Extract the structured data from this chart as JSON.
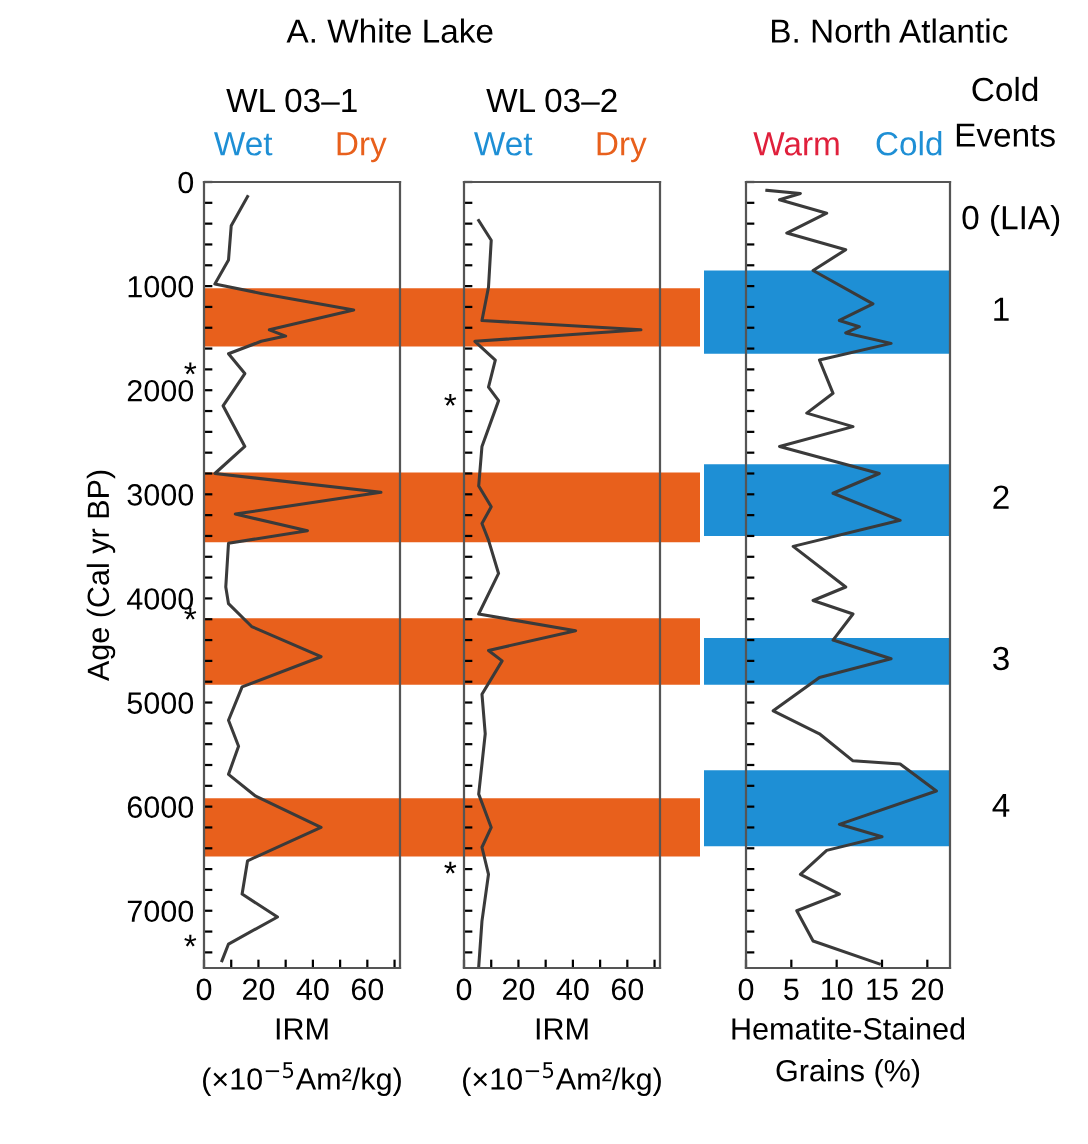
{
  "chart_data": [
    {
      "type": "line",
      "title": "A. White Lake",
      "subtitle": "WL 03–1",
      "xlabel": "IRM\n(×10$^{−5}$Am²/kg)",
      "ylabel": "Age (Cal yr BP)",
      "series": [
        {
          "color": "#3a3a3a",
          "x": [
            16,
            10,
            9,
            4,
            21,
            55,
            24,
            30,
            21,
            9,
            15,
            7,
            15,
            4,
            65,
            11.5,
            38,
            9,
            8,
            9,
            17.5,
            43,
            14,
            9,
            12.7,
            9,
            19,
            43,
            16,
            14,
            27,
            9,
            6.6
          ],
          "values": [
            140,
            420,
            750,
            980,
            1070,
            1230,
            1420,
            1480,
            1530,
            1650,
            1840,
            2150,
            2540,
            2800,
            2980,
            3190,
            3350,
            3470,
            3890,
            4050,
            4270,
            4560,
            4850,
            5170,
            5420,
            5690,
            5900,
            6200,
            6520,
            6840,
            7060,
            7320,
            7480
          ]
        }
      ],
      "xlim": [
        0,
        72
      ],
      "xticks": [
        0,
        {
          "value": 10,
          "label": null
        },
        20,
        {
          "value": 30,
          "label": null
        },
        40,
        {
          "value": 50,
          "label": null
        },
        60,
        {
          "value": 70,
          "label": null
        }
      ],
      "ylim": [
        7550,
        0
      ],
      "yticks": [
        0,
        {
          "value": 200,
          "label": null
        },
        {
          "value": 400,
          "label": null
        },
        {
          "value": 600,
          "label": null
        },
        {
          "value": 800,
          "label": null
        },
        1000,
        {
          "value": 1200,
          "label": null
        },
        {
          "value": 1400,
          "label": null
        },
        {
          "value": 1600,
          "label": null
        },
        {
          "value": 1800,
          "label": null
        },
        2000,
        {
          "value": 2200,
          "label": null
        },
        {
          "value": 2400,
          "label": null
        },
        {
          "value": 2600,
          "label": null
        },
        {
          "value": 2800,
          "label": null
        },
        3000,
        {
          "value": 3200,
          "label": null
        },
        {
          "value": 3400,
          "label": null
        },
        {
          "value": 3600,
          "label": null
        },
        {
          "value": 3800,
          "label": null
        },
        4000,
        {
          "value": 4200,
          "label": null
        },
        {
          "value": 4400,
          "label": null
        },
        {
          "value": 4600,
          "label": null
        },
        {
          "value": 4800,
          "label": null
        },
        5000,
        {
          "value": 5200,
          "label": null
        },
        {
          "value": 5400,
          "label": null
        },
        {
          "value": 5600,
          "label": null
        },
        {
          "value": 5800,
          "label": null
        },
        6000,
        {
          "value": 6200,
          "label": null
        },
        {
          "value": 6400,
          "label": null
        },
        {
          "value": 6600,
          "label": null
        },
        {
          "value": 6800,
          "label": null
        },
        7000,
        {
          "value": 7200,
          "label": null
        },
        {
          "value": 7400,
          "label": null
        }
      ],
      "bands": [
        {
          "axis": "y",
          "from": 1020,
          "to": 1580,
          "color": "#e8601c"
        },
        {
          "axis": "y",
          "from": 2790,
          "to": 3460,
          "color": "#e8601c"
        },
        {
          "axis": "y",
          "from": 4190,
          "to": 4830,
          "color": "#e8601c"
        },
        {
          "axis": "y",
          "from": 5920,
          "to": 6480,
          "color": "#e8601c"
        }
      ],
      "annotations": [
        "Wet",
        "Dry",
        "*",
        "*",
        "*"
      ],
      "grid": false,
      "legend": false
    },
    {
      "type": "line",
      "subtitle": "WL 03–2",
      "xlabel": "IRM\n(×10$^{−5}$Am²/kg)",
      "series": [
        {
          "color": "#3a3a3a",
          "x": [
            5.4,
            10,
            9,
            6.6,
            65,
            4,
            11.5,
            9,
            12.7,
            6.6,
            5.4,
            10,
            6.6,
            9,
            12.7,
            5.4,
            41,
            9,
            14,
            6.6,
            7.8,
            5.4,
            10,
            6.6,
            9,
            6.6,
            5.4
          ],
          "values": [
            370,
            560,
            1010,
            1330,
            1420,
            1530,
            1710,
            1970,
            2100,
            2540,
            2920,
            3120,
            3280,
            3440,
            3760,
            4150,
            4310,
            4500,
            4600,
            4920,
            5300,
            5880,
            6200,
            6390,
            6650,
            7100,
            7540
          ]
        }
      ],
      "xlim": [
        0,
        72
      ],
      "xticks": [
        0,
        {
          "value": 10,
          "label": null
        },
        20,
        {
          "value": 30,
          "label": null
        },
        40,
        {
          "value": 50,
          "label": null
        },
        60,
        {
          "value": 70,
          "label": null
        }
      ],
      "ylim": [
        7550,
        0
      ],
      "yticks": [
        0,
        200,
        400,
        600,
        800,
        1000,
        1200,
        1400,
        1600,
        1800,
        2000,
        2200,
        2400,
        2600,
        2800,
        3000,
        3200,
        3400,
        3600,
        3800,
        4000,
        4200,
        4400,
        4600,
        4800,
        5000,
        5200,
        5400,
        5600,
        5800,
        6000,
        6200,
        6400,
        6600,
        6800,
        7000,
        7200,
        7400
      ],
      "tick_labels": "x",
      "bands": [
        {
          "axis": "y",
          "from": 1020,
          "to": 1580,
          "color": "#e8601c"
        },
        {
          "axis": "y",
          "from": 2790,
          "to": 3460,
          "color": "#e8601c"
        },
        {
          "axis": "y",
          "from": 4190,
          "to": 4830,
          "color": "#e8601c"
        },
        {
          "axis": "y",
          "from": 5920,
          "to": 6480,
          "color": "#e8601c"
        }
      ],
      "annotations": [
        "Wet",
        "Dry",
        "*",
        "*"
      ],
      "grid": false,
      "legend": false
    },
    {
      "type": "line",
      "title": "B. North Atlantic",
      "xlabel": "Hematite-Stained\nGrains (%)",
      "series": [
        {
          "color": "#3a3a3a",
          "x": [
            2.3,
            6,
            3.7,
            8.9,
            4.5,
            11,
            7.4,
            14,
            10.3,
            12.5,
            11,
            16,
            8.1,
            9.6,
            6.7,
            11.8,
            3.7,
            14.7,
            9.6,
            17,
            5.2,
            11,
            7.4,
            11.8,
            9.6,
            16,
            8.1,
            3,
            8.1,
            11.8,
            17,
            21,
            10.3,
            15,
            8.9,
            6,
            10.3,
            5.6,
            7.4,
            14.7
          ],
          "values": [
            80,
            110,
            170,
            300,
            490,
            650,
            850,
            1170,
            1330,
            1390,
            1450,
            1550,
            1710,
            2030,
            2220,
            2350,
            2540,
            2800,
            2990,
            3250,
            3500,
            3890,
            4020,
            4150,
            4400,
            4580,
            4760,
            5080,
            5300,
            5560,
            5590,
            5850,
            6170,
            6290,
            6420,
            6650,
            6840,
            7000,
            7290,
            7510
          ]
        }
      ],
      "xlim": [
        0,
        22.5
      ],
      "xticks": [
        0,
        5,
        10,
        15,
        20
      ],
      "ylim": [
        7550,
        0
      ],
      "yticks": [
        0,
        200,
        400,
        600,
        800,
        1000,
        1200,
        1400,
        1600,
        1800,
        2000,
        2200,
        2400,
        2600,
        2800,
        3000,
        3200,
        3400,
        3600,
        3800,
        4000,
        4200,
        4400,
        4600,
        4800,
        5000,
        5200,
        5400,
        5600,
        5800,
        6000,
        6200,
        6400,
        6600,
        6800,
        7000,
        7200,
        7400
      ],
      "tick_labels": "x",
      "bands": [
        {
          "axis": "y",
          "from": 850,
          "to": 1650,
          "color": "#1e8fd5",
          "label": "1"
        },
        {
          "axis": "y",
          "from": 2710,
          "to": 3400,
          "color": "#1e8fd5",
          "label": "2"
        },
        {
          "axis": "y",
          "from": 4380,
          "to": 4830,
          "color": "#1e8fd5",
          "label": "3"
        },
        {
          "axis": "y",
          "from": 5650,
          "to": 6380,
          "color": "#1e8fd5",
          "label": "4"
        }
      ],
      "annotations": [
        "Warm",
        "Cold",
        "Cold\nEvents",
        "0 (LIA)"
      ],
      "grid": false,
      "legend": false
    }
  ]
}
